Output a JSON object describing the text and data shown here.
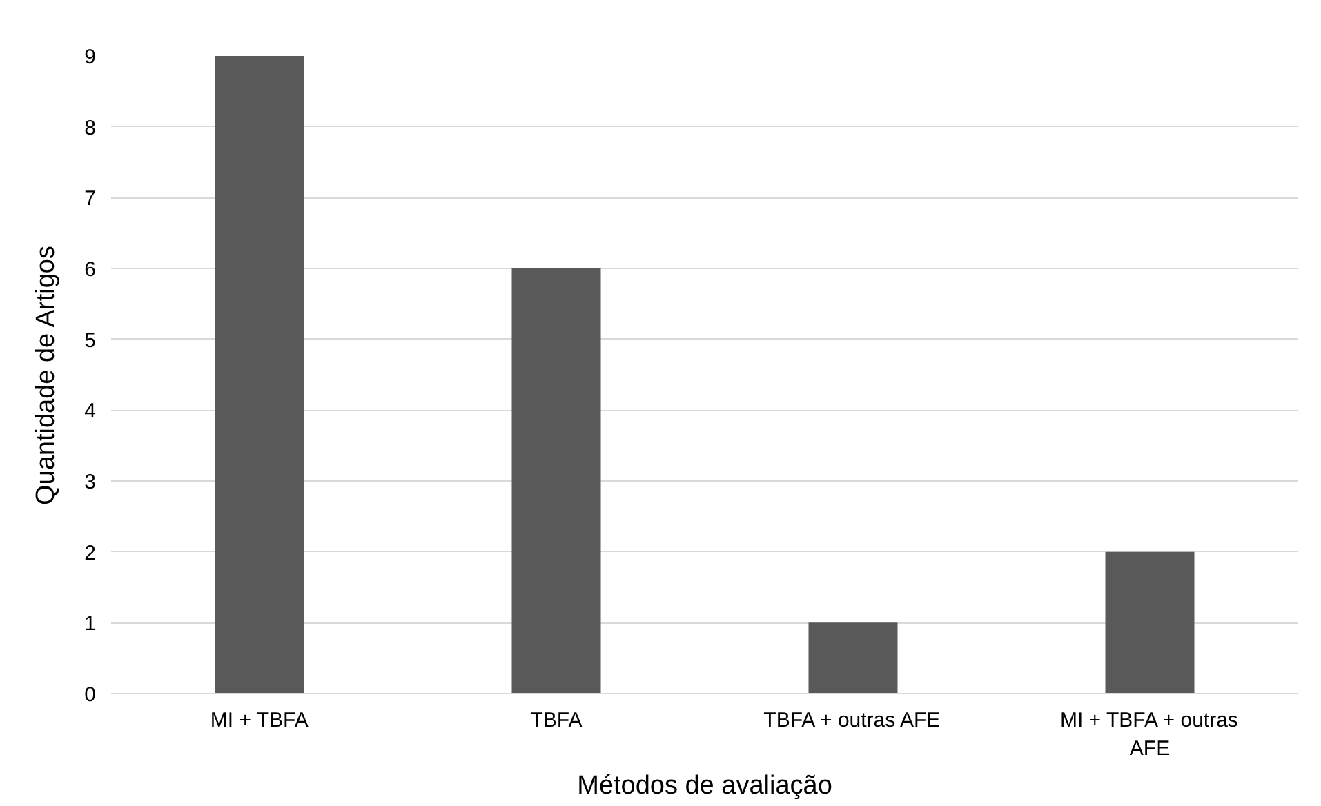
{
  "chart_data": {
    "type": "bar",
    "xlabel": "Métodos de avaliação",
    "ylabel": "Quantidade de Artigos",
    "categories": [
      "MI + TBFA",
      "TBFA",
      "TBFA + outras AFE",
      "MI + TBFA + outras AFE"
    ],
    "values": [
      9,
      6,
      1,
      2
    ],
    "color": "#595959",
    "ylim": [
      0,
      9
    ],
    "yticks": [
      0,
      1,
      2,
      3,
      4,
      5,
      6,
      7,
      8,
      9
    ],
    "grid": "y"
  }
}
